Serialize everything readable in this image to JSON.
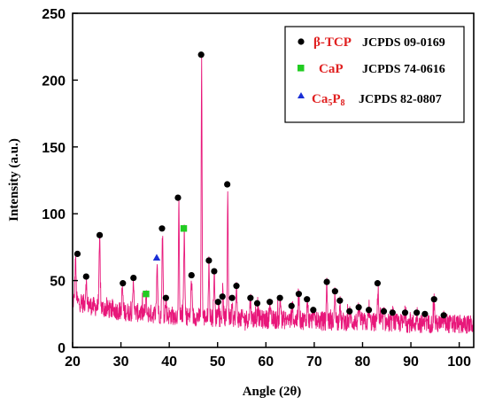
{
  "chart_data": {
    "type": "line",
    "xlabel": "Angle (2θ)",
    "ylabel": "Intensity (a.u.)",
    "xlim": [
      20,
      103
    ],
    "ylim": [
      0,
      250
    ],
    "xticks": [
      "20",
      "30",
      "40",
      "50",
      "60",
      "70",
      "80",
      "90",
      "100"
    ],
    "xtick_values": [
      20,
      30,
      40,
      50,
      60,
      70,
      80,
      90,
      100
    ],
    "yticks": [
      "0",
      "50",
      "100",
      "150",
      "200",
      "250"
    ],
    "ytick_values": [
      0,
      50,
      100,
      150,
      200,
      250
    ],
    "grid": false,
    "legend_position": "top-right",
    "line_color": "#e8177a",
    "peaks": [
      {
        "x": 20.6,
        "y": 66
      },
      {
        "x": 22.8,
        "y": 50
      },
      {
        "x": 25.6,
        "y": 80
      },
      {
        "x": 30.3,
        "y": 45
      },
      {
        "x": 32.6,
        "y": 50
      },
      {
        "x": 35.2,
        "y": 38
      },
      {
        "x": 37.5,
        "y": 62
      },
      {
        "x": 38.6,
        "y": 84
      },
      {
        "x": 39.3,
        "y": 34
      },
      {
        "x": 42.0,
        "y": 108
      },
      {
        "x": 43.1,
        "y": 85
      },
      {
        "x": 44.6,
        "y": 51
      },
      {
        "x": 46.7,
        "y": 214
      },
      {
        "x": 48.2,
        "y": 62
      },
      {
        "x": 49.3,
        "y": 55
      },
      {
        "x": 50.1,
        "y": 34
      },
      {
        "x": 51.1,
        "y": 37
      },
      {
        "x": 52.1,
        "y": 119
      },
      {
        "x": 53.0,
        "y": 35
      },
      {
        "x": 53.9,
        "y": 43
      },
      {
        "x": 56.8,
        "y": 36
      },
      {
        "x": 58.3,
        "y": 31
      },
      {
        "x": 60.8,
        "y": 33
      },
      {
        "x": 63.0,
        "y": 36
      },
      {
        "x": 65.5,
        "y": 30
      },
      {
        "x": 66.8,
        "y": 39
      },
      {
        "x": 68.6,
        "y": 34
      },
      {
        "x": 69.8,
        "y": 27
      },
      {
        "x": 72.6,
        "y": 47
      },
      {
        "x": 74.3,
        "y": 41
      },
      {
        "x": 75.3,
        "y": 33
      },
      {
        "x": 77.4,
        "y": 26
      },
      {
        "x": 79.3,
        "y": 30
      },
      {
        "x": 81.3,
        "y": 27
      },
      {
        "x": 83.2,
        "y": 46
      },
      {
        "x": 84.4,
        "y": 26
      },
      {
        "x": 86.3,
        "y": 25
      },
      {
        "x": 88.8,
        "y": 25
      },
      {
        "x": 91.3,
        "y": 25
      },
      {
        "x": 93.0,
        "y": 24
      },
      {
        "x": 94.8,
        "y": 35
      },
      {
        "x": 96.8,
        "y": 23
      }
    ],
    "baseline": [
      {
        "x": 20,
        "y": 35
      },
      {
        "x": 25,
        "y": 30
      },
      {
        "x": 30,
        "y": 27
      },
      {
        "x": 40,
        "y": 24
      },
      {
        "x": 50,
        "y": 22
      },
      {
        "x": 60,
        "y": 21
      },
      {
        "x": 70,
        "y": 20
      },
      {
        "x": 80,
        "y": 19
      },
      {
        "x": 90,
        "y": 18
      },
      {
        "x": 103,
        "y": 17
      }
    ],
    "markers": [
      {
        "x": 21.0,
        "y": 70,
        "phase": "β-TCP"
      },
      {
        "x": 22.8,
        "y": 53,
        "phase": "β-TCP"
      },
      {
        "x": 25.6,
        "y": 84,
        "phase": "β-TCP"
      },
      {
        "x": 30.4,
        "y": 48,
        "phase": "β-TCP"
      },
      {
        "x": 32.6,
        "y": 52,
        "phase": "β-TCP"
      },
      {
        "x": 35.2,
        "y": 40,
        "phase": "CaP"
      },
      {
        "x": 37.4,
        "y": 67,
        "phase": "Ca5P8"
      },
      {
        "x": 38.5,
        "y": 89,
        "phase": "β-TCP"
      },
      {
        "x": 39.3,
        "y": 37,
        "phase": "β-TCP"
      },
      {
        "x": 41.8,
        "y": 112,
        "phase": "β-TCP"
      },
      {
        "x": 43.0,
        "y": 89,
        "phase": "CaP"
      },
      {
        "x": 44.6,
        "y": 54,
        "phase": "β-TCP"
      },
      {
        "x": 46.6,
        "y": 219,
        "phase": "β-TCP"
      },
      {
        "x": 48.2,
        "y": 65,
        "phase": "β-TCP"
      },
      {
        "x": 49.3,
        "y": 57,
        "phase": "β-TCP"
      },
      {
        "x": 50.1,
        "y": 34,
        "phase": "β-TCP"
      },
      {
        "x": 51.0,
        "y": 38,
        "phase": "β-TCP"
      },
      {
        "x": 52.0,
        "y": 122,
        "phase": "β-TCP"
      },
      {
        "x": 53.0,
        "y": 37,
        "phase": "β-TCP"
      },
      {
        "x": 53.9,
        "y": 46,
        "phase": "β-TCP"
      },
      {
        "x": 56.8,
        "y": 37,
        "phase": "β-TCP"
      },
      {
        "x": 58.2,
        "y": 33,
        "phase": "β-TCP"
      },
      {
        "x": 60.8,
        "y": 34,
        "phase": "β-TCP"
      },
      {
        "x": 62.9,
        "y": 37,
        "phase": "β-TCP"
      },
      {
        "x": 65.3,
        "y": 31,
        "phase": "β-TCP"
      },
      {
        "x": 66.8,
        "y": 40,
        "phase": "β-TCP"
      },
      {
        "x": 68.5,
        "y": 36,
        "phase": "β-TCP"
      },
      {
        "x": 69.8,
        "y": 28,
        "phase": "β-TCP"
      },
      {
        "x": 72.6,
        "y": 49,
        "phase": "β-TCP"
      },
      {
        "x": 74.3,
        "y": 42,
        "phase": "β-TCP"
      },
      {
        "x": 75.3,
        "y": 35,
        "phase": "β-TCP"
      },
      {
        "x": 77.3,
        "y": 27,
        "phase": "β-TCP"
      },
      {
        "x": 79.2,
        "y": 30,
        "phase": "β-TCP"
      },
      {
        "x": 81.3,
        "y": 28,
        "phase": "β-TCP"
      },
      {
        "x": 83.1,
        "y": 48,
        "phase": "β-TCP"
      },
      {
        "x": 84.4,
        "y": 27,
        "phase": "β-TCP"
      },
      {
        "x": 86.2,
        "y": 26,
        "phase": "β-TCP"
      },
      {
        "x": 88.8,
        "y": 26,
        "phase": "β-TCP"
      },
      {
        "x": 91.2,
        "y": 26,
        "phase": "β-TCP"
      },
      {
        "x": 92.9,
        "y": 25,
        "phase": "β-TCP"
      },
      {
        "x": 94.8,
        "y": 36,
        "phase": "β-TCP"
      },
      {
        "x": 96.8,
        "y": 24,
        "phase": "β-TCP"
      }
    ],
    "legend": [
      {
        "phase": "β-TCP",
        "card": "JCPDS 09-0169",
        "marker": "circle",
        "color": "#000000"
      },
      {
        "phase": "CaP",
        "card": "JCPDS 74-0616",
        "marker": "square",
        "color": "#22cc22"
      },
      {
        "phase": "Ca5P8",
        "card": "JCPDS 82-0807",
        "marker": "triangle",
        "color": "#1a2fd6"
      }
    ]
  }
}
